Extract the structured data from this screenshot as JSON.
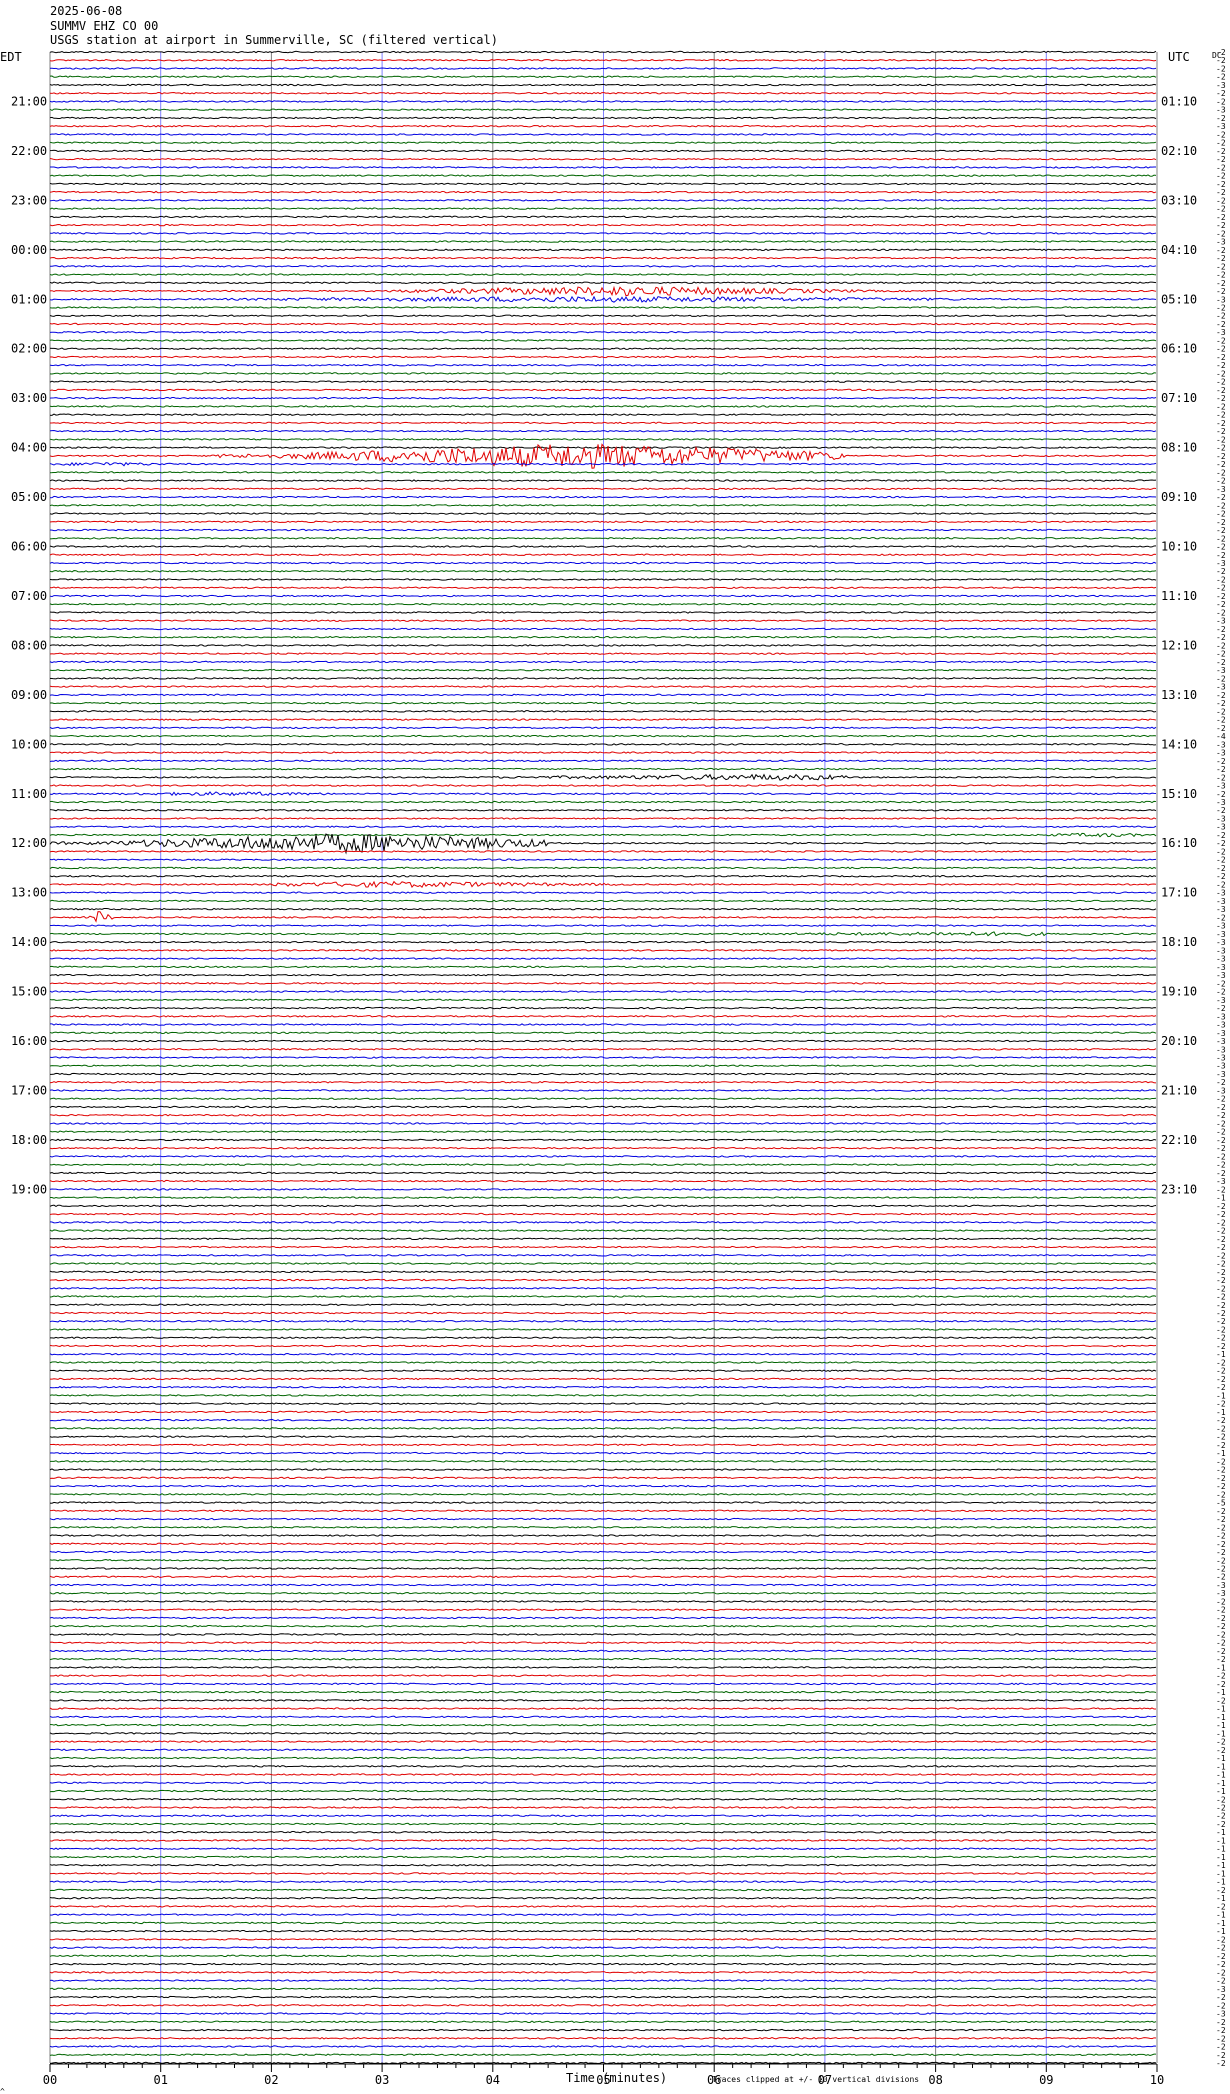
{
  "header": {
    "date": "2025-06-08",
    "station": "SUMMV EHZ CO 00",
    "description": "USGS station at airport in Summerville, SC (filtered vertical)"
  },
  "left_axis_label": "EDT",
  "right_axis_label": "UTC",
  "dc_label": "DC",
  "footer": {
    "xlabel": "Time (minutes)",
    "note": "Traces clipped at +/- 10 vertical divisions",
    "corner_mark": "^"
  },
  "chart_data": {
    "type": "helicorder",
    "trace_colors": [
      "#000000",
      "#e00000",
      "#0000e0",
      "#006400"
    ],
    "grid_colors": {
      "vertical_minor": "#8080ff",
      "vertical_major": "#808080"
    },
    "x_ticks": [
      "00",
      "01",
      "02",
      "03",
      "04",
      "05",
      "06",
      "07",
      "08",
      "09",
      "10"
    ],
    "x_range": [
      0,
      10
    ],
    "rows_per_hour": 6,
    "left_hour_labels": [
      "21:00",
      "22:00",
      "23:00",
      "00:00",
      "01:00",
      "02:00",
      "03:00",
      "04:00",
      "05:00",
      "06:00",
      "07:00",
      "08:00",
      "09:00",
      "10:00",
      "11:00",
      "12:00",
      "13:00",
      "14:00",
      "15:00",
      "16:00",
      "17:00",
      "18:00",
      "19:00"
    ],
    "right_hour_labels": [
      "01:10",
      "02:10",
      "03:10",
      "04:10",
      "05:10",
      "06:10",
      "07:10",
      "08:10",
      "09:10",
      "10:10",
      "11:10",
      "12:10",
      "13:10",
      "14:10",
      "15:10",
      "16:10",
      "17:10",
      "18:10",
      "19:10",
      "20:10",
      "21:10",
      "22:10",
      "23:10"
    ],
    "dc_offsets": [
      "-2",
      "-2",
      "-2",
      "-2",
      "-3",
      "-2",
      "-2",
      "-3",
      "-2",
      "-3",
      "-2",
      "-2",
      "-2",
      "-2",
      "-2",
      "-2",
      "-2",
      "-2",
      "-2",
      "-2",
      "-2",
      "-2",
      "-2",
      "-3",
      "-2",
      "-2",
      "-2",
      "-2",
      "-2",
      "-2",
      "-3",
      "-2",
      "-2",
      "-2",
      "-3",
      "-2",
      "-2",
      "-2",
      "-2",
      "-2",
      "-2",
      "-2",
      "-2",
      "-2",
      "-2",
      "-2",
      "-2",
      "-2",
      "-2",
      "-2",
      "-2",
      "-2",
      "-2",
      "-3",
      "-2",
      "-2",
      "-2",
      "-2",
      "-2",
      "-2",
      "-2",
      "-2",
      "-3",
      "-2",
      "-2",
      "-2",
      "-2",
      "-2",
      "-2",
      "-3",
      "-2",
      "-2",
      "-2",
      "-2",
      "-2",
      "-3",
      "-2",
      "-3",
      "-2",
      "-2",
      "-2",
      "-2",
      "-2",
      "-4",
      "-3",
      "-3",
      "-2",
      "-2",
      "-2",
      "-3",
      "-2",
      "-3",
      "-2",
      "-3",
      "-3",
      "-2",
      "-2",
      "-2",
      "-2",
      "-2",
      "-2",
      "-2",
      "-3",
      "-3",
      "-3",
      "-2",
      "-3",
      "-3",
      "-3",
      "-3",
      "-3",
      "-3",
      "-3",
      "-2",
      "-2",
      "-3",
      "-2",
      "-3",
      "-3",
      "-3",
      "-3",
      "-3",
      "-3",
      "-3",
      "-3",
      "-2",
      "-3",
      "-2",
      "-2",
      "-2",
      "-2",
      "-2",
      "-2",
      "-2",
      "-2",
      "-2",
      "-2",
      "-3",
      "-2",
      "-1",
      "-2",
      "-2",
      "-2",
      "-2",
      "-2",
      "-2",
      "-2",
      "-2",
      "-2",
      "-2",
      "-2",
      "-2",
      "-2",
      "-2",
      "-2",
      "-2",
      "-2",
      "-2",
      "-1",
      "-2",
      "-2",
      "-2",
      "-2",
      "-1",
      "-2",
      "-1",
      "-2",
      "-2",
      "-2",
      "-2",
      "-1",
      "-2",
      "-2",
      "-2",
      "-2",
      "-2",
      "-5",
      "-2",
      "-2",
      "-2",
      "-2",
      "-2",
      "-2",
      "-2",
      "-2",
      "-2",
      "-3",
      "-3",
      "-2",
      "-2",
      "-2",
      "-2",
      "-2",
      "-2",
      "-2",
      "-2",
      "-1",
      "-2",
      "-2",
      "-1",
      "-2",
      "-1",
      "-1",
      "-1",
      "-1",
      "-2",
      "-2",
      "-1",
      "-1",
      "-1",
      "-1",
      "-1",
      "-2",
      "-2",
      "-2",
      "-2",
      "-1",
      "-1",
      "-1",
      "-1",
      "-1",
      "-1",
      "-1",
      "-2",
      "-1",
      "-2",
      "-1",
      "-1",
      "-1",
      "-2",
      "-2",
      "-2",
      "-2",
      "-2",
      "-2",
      "-3",
      "-2",
      "-2",
      "-3",
      "-2",
      "-2",
      "-2",
      "-2",
      "-2",
      "-2"
    ],
    "events": [
      {
        "row": 29,
        "start_min": 3.0,
        "end_min": 8.0,
        "peak_min": 5.2,
        "amplitude": 5
      },
      {
        "row": 30,
        "start_min": 0.0,
        "end_min": 10.0,
        "peak_min": 5.0,
        "amplitude": 3
      },
      {
        "row": 49,
        "start_min": 1.5,
        "end_min": 7.2,
        "peak_min": 4.8,
        "amplitude": 13
      },
      {
        "row": 50,
        "start_min": 0.0,
        "end_min": 1.5,
        "peak_min": 0.5,
        "amplitude": 2
      },
      {
        "row": 88,
        "start_min": 3.0,
        "end_min": 7.2,
        "peak_min": 6.5,
        "amplitude": 3
      },
      {
        "row": 90,
        "start_min": 0.0,
        "end_min": 3.5,
        "peak_min": 1.6,
        "amplitude": 2
      },
      {
        "row": 95,
        "start_min": 8.5,
        "end_min": 10.0,
        "peak_min": 9.5,
        "amplitude": 2
      },
      {
        "row": 96,
        "start_min": 0.0,
        "end_min": 4.5,
        "peak_min": 2.7,
        "amplitude": 10
      },
      {
        "row": 101,
        "start_min": 2.0,
        "end_min": 6.0,
        "peak_min": 3.2,
        "amplitude": 3
      },
      {
        "row": 105,
        "start_min": 0.3,
        "end_min": 0.6,
        "peak_min": 0.45,
        "amplitude": 7
      },
      {
        "row": 107,
        "start_min": 4.5,
        "end_min": 9.0,
        "peak_min": 8.5,
        "amplitude": 2
      }
    ]
  }
}
